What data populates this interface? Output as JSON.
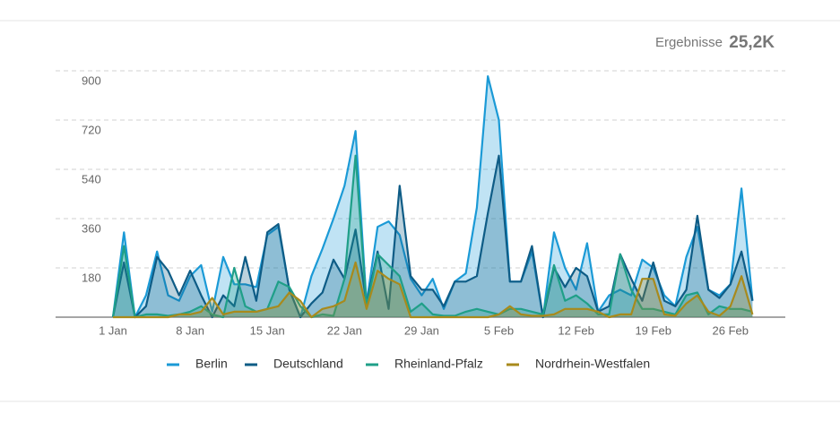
{
  "chart_data": {
    "type": "area",
    "headline_label": "Ergebnisse",
    "headline_value": "25,2K",
    "categories": [
      "1 Jan",
      null,
      null,
      null,
      null,
      null,
      null,
      "8 Jan",
      null,
      null,
      null,
      null,
      null,
      null,
      "15 Jan",
      null,
      null,
      null,
      null,
      null,
      null,
      "22 Jan",
      null,
      null,
      null,
      null,
      null,
      null,
      "29 Jan",
      null,
      null,
      null,
      null,
      null,
      null,
      "5 Feb",
      null,
      null,
      null,
      null,
      null,
      null,
      "12 Feb",
      null,
      null,
      null,
      null,
      null,
      null,
      "19 Feb",
      null,
      null,
      null,
      null,
      null,
      null,
      "26 Feb",
      null,
      null
    ],
    "series": [
      {
        "name": "Berlin",
        "color": "#1b9ad6",
        "values": [
          0,
          310,
          0,
          80,
          240,
          80,
          60,
          150,
          190,
          20,
          220,
          120,
          120,
          110,
          300,
          330,
          100,
          0,
          150,
          250,
          360,
          480,
          680,
          50,
          330,
          350,
          300,
          140,
          80,
          140,
          30,
          130,
          160,
          400,
          880,
          720,
          130,
          130,
          240,
          0,
          310,
          180,
          100,
          270,
          20,
          80,
          100,
          80,
          210,
          180,
          80,
          40,
          220,
          330,
          100,
          80,
          120,
          470,
          60
        ]
      },
      {
        "name": "Deutschland",
        "color": "#0e5c86",
        "values": [
          0,
          200,
          0,
          40,
          220,
          170,
          80,
          170,
          80,
          0,
          80,
          40,
          220,
          60,
          310,
          340,
          100,
          0,
          50,
          90,
          210,
          140,
          320,
          50,
          240,
          30,
          480,
          150,
          100,
          100,
          40,
          130,
          130,
          150,
          380,
          590,
          130,
          130,
          260,
          0,
          180,
          110,
          180,
          150,
          20,
          40,
          230,
          140,
          60,
          200,
          60,
          40,
          100,
          370,
          100,
          70,
          120,
          240,
          60
        ]
      },
      {
        "name": "Rheinland-Pfalz",
        "color": "#1f9f88",
        "values": [
          0,
          260,
          0,
          10,
          10,
          5,
          10,
          20,
          40,
          10,
          0,
          180,
          40,
          20,
          30,
          130,
          110,
          40,
          0,
          10,
          5,
          140,
          590,
          40,
          230,
          190,
          150,
          20,
          50,
          10,
          5,
          5,
          20,
          30,
          20,
          10,
          30,
          30,
          20,
          10,
          190,
          60,
          80,
          50,
          10,
          10,
          230,
          100,
          30,
          30,
          20,
          10,
          80,
          90,
          10,
          40,
          30,
          30,
          20
        ]
      },
      {
        "name": "Nordrhein-Westfalen",
        "color": "#a88a1c",
        "values": [
          0,
          0,
          0,
          0,
          0,
          0,
          10,
          10,
          20,
          70,
          10,
          20,
          20,
          20,
          30,
          40,
          90,
          60,
          0,
          30,
          40,
          60,
          200,
          30,
          170,
          140,
          120,
          0,
          0,
          0,
          0,
          0,
          0,
          0,
          0,
          10,
          40,
          10,
          5,
          5,
          10,
          30,
          30,
          30,
          20,
          0,
          10,
          10,
          140,
          140,
          10,
          5,
          50,
          80,
          20,
          5,
          40,
          150,
          10
        ]
      }
    ],
    "ylim": [
      0,
      900
    ],
    "yticks": [
      180,
      360,
      540,
      720,
      900
    ],
    "grid": true
  }
}
